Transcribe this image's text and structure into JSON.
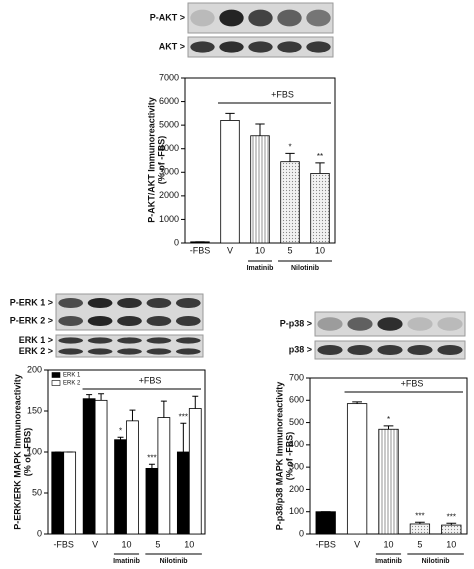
{
  "chart_data": [
    {
      "type": "bar",
      "blot_labels": [
        "P-AKT >",
        "AKT >"
      ],
      "ylabel": [
        "P-AKT/AKT Immunoreactivity",
        "(% of -FBS)"
      ],
      "categories": [
        "-FBS",
        "V",
        "10",
        "5",
        "10"
      ],
      "values": [
        50,
        5200,
        4550,
        3450,
        2950
      ],
      "errors": [
        0,
        300,
        500,
        350,
        450
      ],
      "significance": [
        null,
        null,
        null,
        "*",
        "**"
      ],
      "colors": [
        "#000000",
        "#ffffff",
        "#ffffff",
        "#e0e0e0",
        "#e0e0e0"
      ],
      "patterns": [
        "solid",
        "solid",
        "vertical",
        "dots",
        "dots"
      ],
      "treatment_label": "+FBS",
      "drug_labels": [
        "Imatinib",
        "Nilotinib"
      ],
      "ylim": [
        0,
        7000
      ],
      "yticks": [
        0,
        1000,
        2000,
        3000,
        4000,
        5000,
        6000,
        7000
      ]
    },
    {
      "type": "grouped_bar",
      "blot_labels": [
        "P-ERK 1 >",
        "P-ERK 2 >",
        "ERK 1 >",
        "ERK 2 >"
      ],
      "ylabel": [
        "P-ERK/ERK MAPK Immunoreactivity",
        "(% of -FBS)"
      ],
      "categories": [
        "-FBS",
        "V",
        "10",
        "5",
        "10"
      ],
      "series": [
        {
          "name": "ERK 1",
          "color": "#000000",
          "values": [
            100,
            165,
            115,
            80,
            100
          ],
          "errors": [
            0,
            5,
            3,
            5,
            35
          ],
          "significance": [
            null,
            null,
            "*",
            "***",
            "***"
          ]
        },
        {
          "name": "ERK 2",
          "color": "#ffffff",
          "values": [
            100,
            163,
            138,
            142,
            153
          ],
          "errors": [
            0,
            8,
            13,
            20,
            15
          ],
          "significance": [
            null,
            null,
            null,
            null,
            null
          ]
        }
      ],
      "legend": "upper left",
      "treatment_label": "+FBS",
      "drug_labels": [
        "Imatinib",
        "Nilotinib"
      ],
      "ylim": [
        0,
        200
      ],
      "yticks": [
        0,
        50,
        100,
        150,
        200
      ]
    },
    {
      "type": "bar",
      "blot_labels": [
        "P-p38 >",
        "p38 >"
      ],
      "ylabel": [
        "P-p38/p38 MAPK Immunoreactivity",
        "(% of -FBS)"
      ],
      "categories": [
        "-FBS",
        "V",
        "10",
        "5",
        "10"
      ],
      "values": [
        100,
        585,
        470,
        45,
        40
      ],
      "errors": [
        0,
        8,
        15,
        8,
        8
      ],
      "significance": [
        null,
        null,
        "*",
        "***",
        "***"
      ],
      "colors": [
        "#000000",
        "#ffffff",
        "#ffffff",
        "#e0e0e0",
        "#e0e0e0"
      ],
      "patterns": [
        "solid",
        "solid",
        "vertical",
        "dots",
        "dots"
      ],
      "treatment_label": "+FBS",
      "drug_labels": [
        "Imatinib",
        "Nilotinib"
      ],
      "ylim": [
        0,
        700
      ],
      "yticks": [
        0,
        100,
        200,
        300,
        400,
        500,
        600,
        700
      ]
    }
  ]
}
